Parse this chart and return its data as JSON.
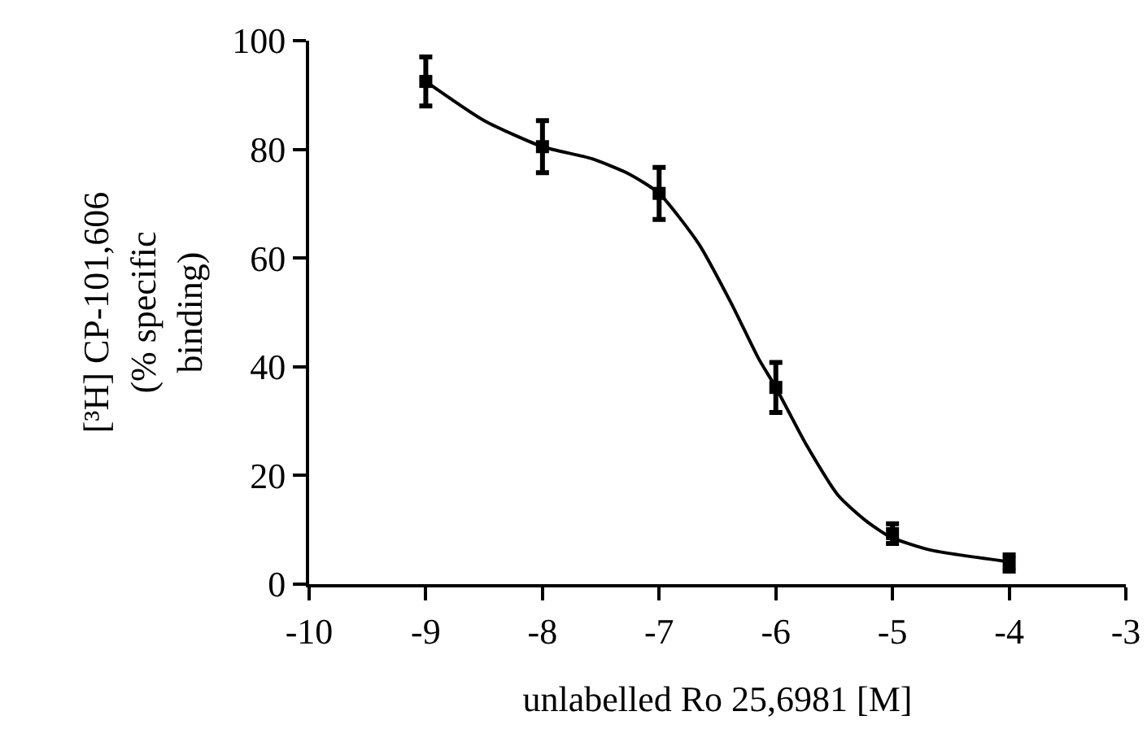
{
  "chart_data": {
    "type": "scatter",
    "xlabel": "unlabelled Ro 25,6981 [M]",
    "ylabel": "[³H] CP-101,606 (% specific binding)",
    "x": [
      -9,
      -8,
      -7,
      -6,
      -5,
      -4
    ],
    "series": [
      {
        "color": "#000000",
        "values": [
          92.5,
          80.5,
          71.9,
          36.2,
          9.3,
          3.9
        ],
        "errors": [
          4.5,
          4.8,
          4.8,
          4.6,
          1.8,
          1.5
        ],
        "marker": "square"
      },
      {
        "type": "line",
        "color": "#000000",
        "x": [
          -9,
          -8.5,
          -8,
          -7.58,
          -7.26,
          -7,
          -6.66,
          -6.38,
          -6.15,
          -6,
          -5.74,
          -5.46,
          -5.23,
          -5.02,
          -4.68,
          -4.03
        ],
        "values": [
          92.5,
          85.3,
          80.5,
          78.3,
          75.5,
          71.9,
          62.6,
          51.6,
          41.6,
          36.2,
          25.7,
          16.2,
          11.7,
          8.7,
          6.3,
          4.2
        ],
        "line_style": "solid"
      }
    ],
    "xlim": [
      -10,
      -3
    ],
    "xticks": [
      -10,
      -9,
      -8,
      -7,
      -6,
      -5,
      -4,
      -3
    ],
    "ylim": [
      0,
      100
    ],
    "yticks": [
      0,
      20,
      40,
      60,
      80,
      100
    ],
    "grid": false
  }
}
